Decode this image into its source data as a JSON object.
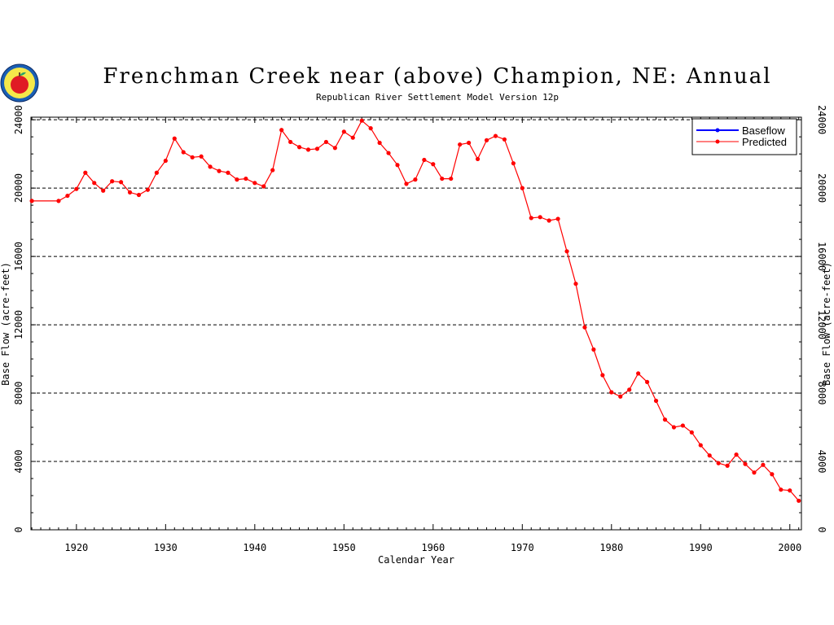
{
  "chart_data": {
    "type": "line",
    "title": "Frenchman Creek near (above) Champion, NE: Annual",
    "subtitle": "Republican River Settlement Model Version 12p",
    "xlabel": "Calendar Year",
    "ylabel": "Base Flow (acre-feet)",
    "ylabel_right": "Base Flow (acre-feet)",
    "xlim": [
      1914.9,
      2001.3
    ],
    "ylim": [
      0,
      24150
    ],
    "xticks": [
      1920,
      1930,
      1940,
      1950,
      1960,
      1970,
      1980,
      1990,
      2000
    ],
    "yticks": [
      0,
      4000,
      8000,
      12000,
      16000,
      20000,
      24000
    ],
    "grid": "horizontal dashed",
    "legend": "top-right",
    "series": [
      {
        "name": "Baseflow",
        "color": "#0000ff",
        "x": [],
        "values": []
      },
      {
        "name": "Predicted",
        "color": "#ff0000",
        "x": [
          1915,
          1918,
          1919,
          1920,
          1921,
          1922,
          1923,
          1924,
          1925,
          1926,
          1927,
          1928,
          1929,
          1930,
          1931,
          1932,
          1933,
          1934,
          1935,
          1936,
          1937,
          1938,
          1939,
          1940,
          1941,
          1942,
          1943,
          1944,
          1945,
          1946,
          1947,
          1948,
          1949,
          1950,
          1951,
          1952,
          1953,
          1954,
          1955,
          1956,
          1957,
          1958,
          1959,
          1960,
          1961,
          1962,
          1963,
          1964,
          1965,
          1966,
          1967,
          1968,
          1969,
          1970,
          1971,
          1972,
          1973,
          1974,
          1975,
          1976,
          1977,
          1978,
          1979,
          1980,
          1981,
          1982,
          1983,
          1984,
          1985,
          1986,
          1987,
          1988,
          1989,
          1990,
          1991,
          1992,
          1993,
          1994,
          1995,
          1996,
          1997,
          1998,
          1999,
          2000,
          2001
        ],
        "values": [
          19250,
          19250,
          19550,
          19950,
          20900,
          20300,
          19850,
          20400,
          20350,
          19750,
          19600,
          19900,
          20900,
          21600,
          22900,
          22100,
          21800,
          21850,
          21250,
          21000,
          20900,
          20500,
          20550,
          20300,
          20100,
          21050,
          23400,
          22700,
          22400,
          22250,
          22300,
          22700,
          22350,
          23300,
          22950,
          23950,
          23500,
          22650,
          22050,
          21350,
          20250,
          20500,
          21650,
          21400,
          20550,
          20550,
          22550,
          22650,
          21700,
          22800,
          23050,
          22850,
          21450,
          20000,
          18250,
          18300,
          18100,
          18200,
          16300,
          14400,
          11850,
          10550,
          9050,
          8050,
          7800,
          8200,
          9150,
          8650,
          7550,
          6450,
          6000,
          6100,
          5700,
          4950,
          4350,
          3900,
          3750,
          4400,
          3850,
          3350,
          3800,
          3250,
          2350,
          2300,
          1700
        ]
      }
    ]
  },
  "legend": {
    "items": [
      {
        "label": "Baseflow",
        "color": "#0000ff"
      },
      {
        "label": "Predicted",
        "color": "#ff0000"
      }
    ]
  },
  "logo": {
    "name": "apple-logo"
  }
}
